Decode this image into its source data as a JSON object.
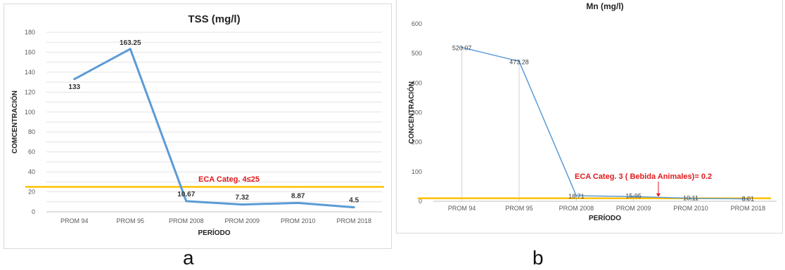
{
  "panel_labels": {
    "a": "a",
    "b": "b"
  },
  "colors": {
    "series": "#5b9bd5",
    "threshold": "#ffc000",
    "eca_text": "#e0191b"
  },
  "chart_data": [
    {
      "type": "line",
      "title": "TSS (mg/l)",
      "xlabel": "PERÍODO",
      "ylabel": "COMCENTRACIÓN",
      "categories": [
        "PROM 94",
        "PROM 95",
        "PROM 2008",
        "PROM 2009",
        "PROM 2010",
        "PROM 2018"
      ],
      "series": [
        {
          "values": [
            133,
            163.25,
            10.67,
            7.32,
            8.87,
            4.5
          ]
        }
      ],
      "data_labels": [
        "133",
        "163.25",
        "10.67",
        "7.32",
        "8.87",
        "4.5"
      ],
      "y_ticks": [
        "0",
        "20",
        "40",
        "60",
        "80",
        "100",
        "120",
        "140",
        "160",
        "180"
      ],
      "ylim": [
        0,
        180
      ],
      "grid": true,
      "threshold": {
        "value": 25,
        "label": "ECA Categ. 4≤25"
      }
    },
    {
      "type": "line",
      "title": "Mn (mg/l)",
      "xlabel": "PERÍODO",
      "ylabel": "CONCENTRACIÓN",
      "categories": [
        "PROM 94",
        "PROM 95",
        "PROM 2008",
        "PROM 2009",
        "PROM 2010",
        "PROM 2018"
      ],
      "series": [
        {
          "values": [
            520.07,
            473.28,
            18.71,
            15.95,
            10.11,
            8.01
          ]
        }
      ],
      "data_labels": [
        "520.07",
        "473.28",
        "18.71",
        "15.95",
        "10.11",
        "8.01"
      ],
      "y_ticks": [
        "0",
        "100",
        "200",
        "300",
        "400",
        "500",
        "600"
      ],
      "ylim": [
        0,
        600
      ],
      "grid": false,
      "threshold": {
        "value": 10,
        "label": "ECA Categ. 3 ( Bebida Animales)= 0.2"
      }
    }
  ]
}
